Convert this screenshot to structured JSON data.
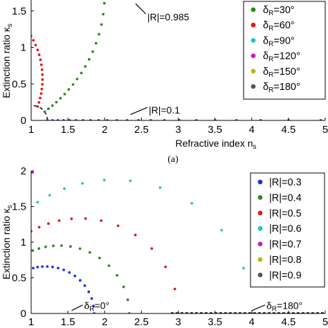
{
  "caption_a": "(a)",
  "chart_data": [
    {
      "type": "scatter",
      "xlabel": "Refractive index ns",
      "ylabel": "Extinction ratio κs",
      "xlim": [
        1,
        5
      ],
      "ylim": [
        0,
        1.65
      ],
      "x_ticks": [
        "1",
        "1.5",
        "2",
        "2.5",
        "3",
        "3.5",
        "4",
        "4.5",
        "5"
      ],
      "x_tick_values": [
        1,
        1.5,
        2,
        2.5,
        3,
        3.5,
        4,
        4.5,
        5
      ],
      "y_ticks": [
        "0",
        "0.5",
        "1",
        "1.5"
      ],
      "y_tick_values": [
        0,
        0.5,
        1,
        1.5
      ],
      "legend_position": "top-right",
      "boundary_radius": 0.985,
      "inner_radius": 0.1,
      "annotations": [
        {
          "text": "|R|=0.985",
          "x": 2.58,
          "y": 1.42,
          "arrow_to": [
            2.42,
            1.6
          ]
        },
        {
          "text": "|R|=0.1",
          "x": 2.6,
          "y": 0.14,
          "arrow_to": [
            2.35,
            0.08
          ]
        }
      ],
      "series": [
        {
          "name": "δR=30°",
          "delta_deg": 30,
          "color": "#2e8b1f"
        },
        {
          "name": "δR=60°",
          "delta_deg": 60,
          "color": "#e01b1b"
        },
        {
          "name": "δR=90°",
          "delta_deg": 90,
          "color": "#1ac6c6"
        },
        {
          "name": "δR=120°",
          "delta_deg": 120,
          "color": "#c41ec4"
        },
        {
          "name": "δR=150°",
          "delta_deg": 150,
          "color": "#b8b814"
        },
        {
          "name": "δR=180°",
          "delta_deg": 180,
          "color": "#555555"
        },
        {
          "delta_deg": 0,
          "color": "#1a33d6"
        }
      ]
    },
    {
      "type": "scatter",
      "xlabel": "",
      "ylabel": "Extinction ratio κs",
      "xlim": [
        1,
        5
      ],
      "ylim": [
        0,
        2
      ],
      "x_ticks": [
        "1",
        "1.5",
        "2",
        "2.5",
        "3",
        "3.5",
        "4",
        "4.5",
        "5"
      ],
      "x_tick_values": [
        1,
        1.5,
        2,
        2.5,
        3,
        3.5,
        4,
        4.5,
        5
      ],
      "y_ticks": [
        "0",
        "0.5",
        "1",
        "1.5",
        "2"
      ],
      "y_tick_values": [
        0,
        0.5,
        1,
        1.5,
        2
      ],
      "legend_position": "top-right",
      "annotations": [
        {
          "text": "δR=0°",
          "x": 1.72,
          "y": 0.1,
          "arrow_to": [
            1.55,
            0.02
          ]
        },
        {
          "text": "δR=180°",
          "x": 4.2,
          "y": 0.1,
          "arrow_to": [
            4.0,
            0.02
          ]
        }
      ],
      "series": [
        {
          "name": "|R|=0.3",
          "magnitude": 0.3,
          "color": "#1a33d6"
        },
        {
          "name": "|R|=0.4",
          "magnitude": 0.4,
          "color": "#2e8b1f"
        },
        {
          "name": "|R|=0.5",
          "magnitude": 0.5,
          "color": "#e01b1b"
        },
        {
          "name": "|R|=0.6",
          "magnitude": 0.6,
          "color": "#1ac6c6"
        },
        {
          "name": "|R|=0.7",
          "magnitude": 0.7,
          "color": "#c41ec4"
        },
        {
          "name": "|R|=0.8",
          "magnitude": 0.8,
          "color": "#b8b814"
        },
        {
          "name": "|R|=0.9",
          "magnitude": 0.9,
          "color": "#555555"
        }
      ]
    }
  ]
}
